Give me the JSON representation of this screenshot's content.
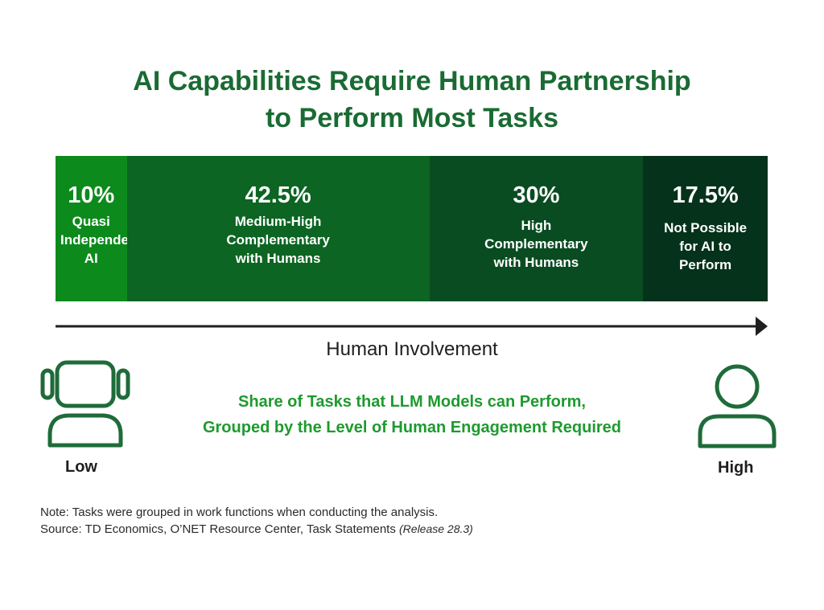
{
  "chart_data": {
    "type": "bar",
    "orientation": "horizontal-stacked",
    "title": "AI Capabilities Require Human Partnership to Perform Most Tasks",
    "title_lines": [
      "AI Capabilities Require Human Partnership",
      "to Perform Most Tasks"
    ],
    "xlabel": "Human Involvement",
    "subtitle": "Share of Tasks that LLM Models can Perform,\nGrouped by the Level of Human Engagement Required",
    "axis_ends": {
      "low": "Low",
      "high": "High"
    },
    "series": [
      {
        "name": "Quasi Independent AI",
        "label_lines": "Quasi\nIndependent\nAI",
        "display": "10%",
        "value": 10,
        "color": "#0d8a1c"
      },
      {
        "name": "Medium-High Complementary with Humans",
        "label_lines": "Medium-High\nComplementary\nwith Humans",
        "display": "42.5%",
        "value": 42.5,
        "color": "#0c6522"
      },
      {
        "name": "High Complementary with Humans",
        "label_lines": "High\nComplementary\nwith Humans",
        "display": "30%",
        "value": 30,
        "color": "#0a4c22"
      },
      {
        "name": "Not Possible for AI to Perform",
        "label_lines": "Not Possible\nfor AI to\nPerform",
        "display": "17.5%",
        "value": 17.5,
        "color": "#05321a"
      }
    ],
    "unit": "%",
    "total": 100
  },
  "footer": {
    "note": "Note: Tasks were grouped in work functions when conducting the analysis.",
    "source": "Source: TD Economics, O’NET Resource Center, Task Statements ",
    "source_release": "(Release 28.3)"
  },
  "icons": {
    "low": "robot-head-icon",
    "high": "person-icon"
  },
  "colors": {
    "title": "#1a6b33",
    "subtitle": "#1e9a2e",
    "icon_stroke": "#1f6b3a",
    "arrow": "#1f1f1f"
  }
}
